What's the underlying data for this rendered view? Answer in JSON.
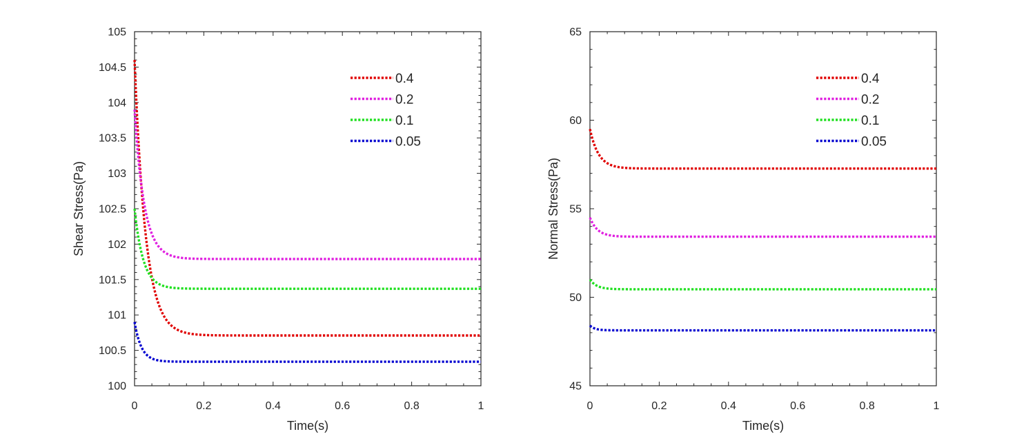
{
  "chart_data": [
    {
      "type": "line",
      "xlabel": "Time(s)",
      "ylabel": "Shear Stress(Pa)",
      "xlim": [
        0,
        1
      ],
      "ylim": [
        100,
        105
      ],
      "xticks": [
        0,
        0.2,
        0.4,
        0.6,
        0.8,
        1
      ],
      "xtick_labels": [
        "0",
        "0.2",
        "0.4",
        "0.6",
        "0.8",
        "1"
      ],
      "yticks": [
        100,
        100.5,
        101,
        101.5,
        102,
        102.5,
        103,
        103.5,
        104,
        104.5,
        105
      ],
      "ytick_labels": [
        "100",
        "100.5",
        "101",
        "101.5",
        "102",
        "102.5",
        "103",
        "103.5",
        "104",
        "104.5",
        "105"
      ],
      "legend_position": "top-right",
      "series": [
        {
          "name": "0.4",
          "color": "#e00000",
          "start": 104.6,
          "end": 100.71,
          "tau": 0.032
        },
        {
          "name": "0.2",
          "color": "#e020e0",
          "start": 103.9,
          "end": 101.79,
          "tau": 0.028
        },
        {
          "name": "0.1",
          "color": "#20e020",
          "start": 102.5,
          "end": 101.37,
          "tau": 0.025
        },
        {
          "name": "0.05",
          "color": "#0000d0",
          "start": 100.9,
          "end": 100.34,
          "tau": 0.02
        }
      ]
    },
    {
      "type": "line",
      "xlabel": "Time(s)",
      "ylabel": "Normal Stress(Pa)",
      "xlim": [
        0,
        1
      ],
      "ylim": [
        45,
        65
      ],
      "xticks": [
        0,
        0.2,
        0.4,
        0.6,
        0.8,
        1
      ],
      "xtick_labels": [
        "0",
        "0.2",
        "0.4",
        "0.6",
        "0.8",
        "1"
      ],
      "yticks": [
        45,
        50,
        55,
        60,
        65
      ],
      "ytick_labels": [
        "45",
        "50",
        "55",
        "60",
        "65"
      ],
      "legend_position": "top-right",
      "series": [
        {
          "name": "0.4",
          "color": "#e00000",
          "start": 59.5,
          "end": 57.27,
          "tau": 0.025
        },
        {
          "name": "0.2",
          "color": "#e020e0",
          "start": 54.5,
          "end": 53.42,
          "tau": 0.022
        },
        {
          "name": "0.1",
          "color": "#20e020",
          "start": 51.0,
          "end": 50.45,
          "tau": 0.02
        },
        {
          "name": "0.05",
          "color": "#0000d0",
          "start": 48.4,
          "end": 48.13,
          "tau": 0.015
        }
      ]
    }
  ]
}
